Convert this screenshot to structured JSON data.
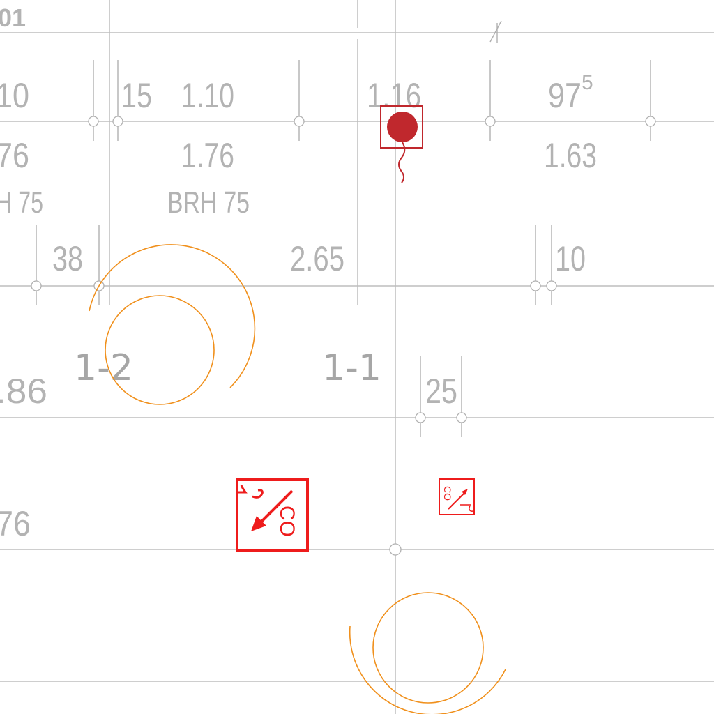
{
  "drawing": {
    "sheet_ref": "01",
    "dimensions_row1": {
      "a": "10",
      "b": "15",
      "c": "1.10",
      "d": "1.16",
      "e_base": "97",
      "e_sup": "5"
    },
    "heights_row1": {
      "a": "76",
      "b": "1.76",
      "c": "1.63"
    },
    "sill_labels": {
      "a": "H 75",
      "b": "BRH 75"
    },
    "dimensions_row2": {
      "a": "38",
      "b": "2.65",
      "c": "10"
    },
    "rooms": {
      "left": "1-2",
      "right": "1-1"
    },
    "dimensions_row3": {
      "a": ".86",
      "b": "25"
    },
    "dimensions_row4": {
      "a": "76"
    },
    "symbols": {
      "co_large": {
        "label": "CO",
        "icon": "co-detector-icon",
        "color": "#ee1c1c"
      },
      "co_small": {
        "label": "CO",
        "icon": "co-detector-icon",
        "color": "#ee1c1c"
      },
      "smoke_detector": {
        "icon": "detector-dot-icon",
        "color": "#c0282d"
      }
    },
    "colors": {
      "grid": "#bdbdbd",
      "text": "#b3b3b3",
      "door_swing": "#f0901c",
      "fire_symbols": "#ee1c1c"
    }
  }
}
